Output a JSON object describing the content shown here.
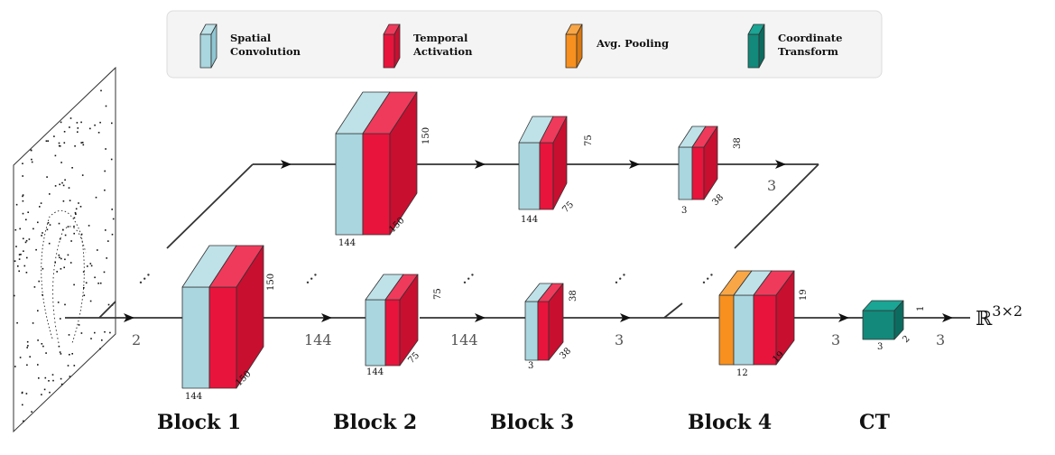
{
  "colors": {
    "spatial_front": "#a9d6df",
    "spatial_top": "#bfe2e9",
    "spatial_side": "#8fc6d1",
    "temporal_front": "#e8143c",
    "temporal_top": "#f03a5c",
    "temporal_side": "#c80f30",
    "pool_front": "#f7901e",
    "pool_top": "#f9a647",
    "pool_side": "#d97710",
    "ct_front": "#12897a",
    "ct_top": "#1aa594",
    "ct_side": "#0c6b5f",
    "line": "#333333"
  },
  "legend": {
    "spatial": [
      "Spatial",
      "Convolution"
    ],
    "temporal": [
      "Temporal",
      "Activation"
    ],
    "pool": [
      "Avg. Pooling"
    ],
    "ct": [
      "Coordinate",
      "Transform"
    ]
  },
  "blocks": {
    "b1": "Block 1",
    "b2": "Block 2",
    "b3": "Block 3",
    "b4": "Block 4",
    "ct": "CT"
  },
  "dims": {
    "d144": "144",
    "d150": "150",
    "d75": "75",
    "d38": "38",
    "d3": "3",
    "d19": "19",
    "d12": "12",
    "d2": "2",
    "d1": "1"
  },
  "channels": {
    "c2": "2",
    "c144": "144",
    "c3": "3"
  },
  "output": {
    "base": "ℝ",
    "sup": "3×2"
  },
  "ellipsis": "…"
}
